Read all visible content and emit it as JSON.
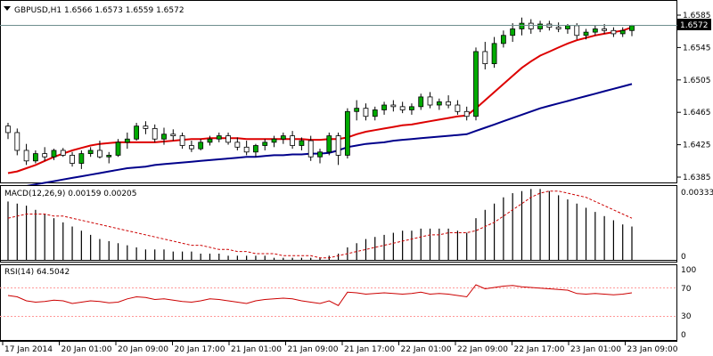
{
  "window": {
    "symbol_line": "GBPUSD,H1  1.6566 1.6573 1.6559 1.6572",
    "collapse_glyph": "triangle-down-icon"
  },
  "price_panel": {
    "current_price_label": "1.6572",
    "y_ticks": [
      "1.6585",
      "1.6545",
      "1.6505",
      "1.6465",
      "1.6425",
      "1.6385"
    ]
  },
  "macd_panel": {
    "title": "MACD(12,26,9) 0.00159 0.00205",
    "y_ticks": [
      "0.00333",
      "0"
    ]
  },
  "rsi_panel": {
    "title": "RSI(14) 64.5042",
    "y_ticks": [
      "100",
      "70",
      "30",
      "0"
    ],
    "levels": [
      70,
      30
    ]
  },
  "time_axis": {
    "labels": [
      "17 Jan 2014",
      "20 Jan 01:00",
      "20 Jan 09:00",
      "20 Jan 17:00",
      "21 Jan 01:00",
      "21 Jan 09:00",
      "21 Jan 17:00",
      "22 Jan 01:00",
      "22 Jan 09:00",
      "22 Jan 17:00",
      "23 Jan 01:00",
      "23 Jan 09:00"
    ]
  },
  "colors": {
    "background": "#ffffff",
    "bull_candle": "#00aa00",
    "bear_candle": "#222222",
    "fast_ma": "#dd0000",
    "slow_ma": "#00008b",
    "macd_hist": "#000000",
    "macd_signal": "#cc0000",
    "rsi_line": "#cc0000",
    "level_line": "#ff9999",
    "border": "#000000"
  },
  "chart_data": [
    {
      "type": "candlestick",
      "name": "price",
      "ylim": [
        1.638,
        1.659
      ],
      "candles": [
        [
          1.6448,
          1.6452,
          1.6432,
          1.644
        ],
        [
          1.644,
          1.6445,
          1.6412,
          1.6418
        ],
        [
          1.6418,
          1.6426,
          1.64,
          1.6405
        ],
        [
          1.6405,
          1.6418,
          1.6402,
          1.6414
        ],
        [
          1.6414,
          1.6422,
          1.6405,
          1.641
        ],
        [
          1.641,
          1.642,
          1.6406,
          1.6418
        ],
        [
          1.6418,
          1.6421,
          1.641,
          1.6412
        ],
        [
          1.6412,
          1.6416,
          1.6398,
          1.6402
        ],
        [
          1.6402,
          1.6418,
          1.6395,
          1.6414
        ],
        [
          1.6414,
          1.6422,
          1.641,
          1.6418
        ],
        [
          1.6418,
          1.643,
          1.6408,
          1.641
        ],
        [
          1.641,
          1.6416,
          1.6402,
          1.6412
        ],
        [
          1.6412,
          1.6432,
          1.641,
          1.6428
        ],
        [
          1.6428,
          1.644,
          1.642,
          1.6432
        ],
        [
          1.6432,
          1.6452,
          1.643,
          1.6448
        ],
        [
          1.6448,
          1.6454,
          1.6438,
          1.6445
        ],
        [
          1.6445,
          1.645,
          1.6428,
          1.6432
        ],
        [
          1.6432,
          1.6446,
          1.6425,
          1.6438
        ],
        [
          1.6438,
          1.6444,
          1.643,
          1.6436
        ],
        [
          1.6436,
          1.644,
          1.642,
          1.6424
        ],
        [
          1.6424,
          1.643,
          1.6416,
          1.642
        ],
        [
          1.642,
          1.6432,
          1.6418,
          1.6428
        ],
        [
          1.6428,
          1.6436,
          1.6424,
          1.6432
        ],
        [
          1.6432,
          1.644,
          1.6428,
          1.6436
        ],
        [
          1.6436,
          1.644,
          1.6425,
          1.6428
        ],
        [
          1.6428,
          1.6434,
          1.6418,
          1.6422
        ],
        [
          1.6422,
          1.643,
          1.6412,
          1.6416
        ],
        [
          1.6416,
          1.6426,
          1.641,
          1.6424
        ],
        [
          1.6424,
          1.6432,
          1.6418,
          1.6428
        ],
        [
          1.6428,
          1.6436,
          1.6422,
          1.6432
        ],
        [
          1.6432,
          1.644,
          1.6426,
          1.6436
        ],
        [
          1.6436,
          1.6442,
          1.642,
          1.6424
        ],
        [
          1.6424,
          1.6434,
          1.6418,
          1.643
        ],
        [
          1.643,
          1.6436,
          1.6405,
          1.641
        ],
        [
          1.641,
          1.642,
          1.6402,
          1.6416
        ],
        [
          1.6416,
          1.644,
          1.6412,
          1.6436
        ],
        [
          1.6436,
          1.644,
          1.64,
          1.6412
        ],
        [
          1.6412,
          1.647,
          1.6408,
          1.6466
        ],
        [
          1.6466,
          1.648,
          1.6455,
          1.647
        ],
        [
          1.647,
          1.6476,
          1.6455,
          1.646
        ],
        [
          1.646,
          1.6472,
          1.6455,
          1.6468
        ],
        [
          1.6468,
          1.6478,
          1.6462,
          1.6474
        ],
        [
          1.6474,
          1.648,
          1.6466,
          1.6472
        ],
        [
          1.6472,
          1.6478,
          1.6464,
          1.6468
        ],
        [
          1.6468,
          1.6476,
          1.6462,
          1.6472
        ],
        [
          1.6472,
          1.6488,
          1.6468,
          1.6484
        ],
        [
          1.6484,
          1.649,
          1.647,
          1.6474
        ],
        [
          1.6474,
          1.6482,
          1.6468,
          1.6478
        ],
        [
          1.6478,
          1.6486,
          1.647,
          1.6474
        ],
        [
          1.6474,
          1.648,
          1.6462,
          1.6466
        ],
        [
          1.6466,
          1.6472,
          1.6455,
          1.646
        ],
        [
          1.646,
          1.6545,
          1.6455,
          1.654
        ],
        [
          1.654,
          1.6552,
          1.6518,
          1.6525
        ],
        [
          1.6525,
          1.6558,
          1.652,
          1.655
        ],
        [
          1.655,
          1.6566,
          1.6545,
          1.656
        ],
        [
          1.656,
          1.6575,
          1.6552,
          1.6568
        ],
        [
          1.6568,
          1.6582,
          1.656,
          1.6575
        ],
        [
          1.6575,
          1.658,
          1.6562,
          1.6568
        ],
        [
          1.6568,
          1.6578,
          1.6564,
          1.6574
        ],
        [
          1.6574,
          1.6578,
          1.6566,
          1.657
        ],
        [
          1.657,
          1.6576,
          1.6564,
          1.6568
        ],
        [
          1.6568,
          1.6574,
          1.6562,
          1.6572
        ],
        [
          1.6572,
          1.6575,
          1.6555,
          1.656
        ],
        [
          1.656,
          1.6568,
          1.6555,
          1.6564
        ],
        [
          1.6564,
          1.6572,
          1.656,
          1.6568
        ],
        [
          1.6568,
          1.6574,
          1.6562,
          1.6566
        ],
        [
          1.6566,
          1.657,
          1.6558,
          1.6562
        ],
        [
          1.6562,
          1.657,
          1.6558,
          1.6566
        ],
        [
          1.6566,
          1.6573,
          1.6559,
          1.6572
        ]
      ]
    },
    {
      "type": "line",
      "name": "fast-ma",
      "values": [
        1.639,
        1.6392,
        1.6396,
        1.64,
        1.6405,
        1.641,
        1.6414,
        1.6418,
        1.6421,
        1.6424,
        1.6426,
        1.6427,
        1.6428,
        1.6428,
        1.6428,
        1.6428,
        1.6428,
        1.6429,
        1.643,
        1.6431,
        1.6432,
        1.6432,
        1.6433,
        1.6433,
        1.6433,
        1.6433,
        1.6432,
        1.6432,
        1.6432,
        1.6432,
        1.6432,
        1.6432,
        1.6432,
        1.6431,
        1.6431,
        1.6432,
        1.6432,
        1.6434,
        1.6438,
        1.6441,
        1.6443,
        1.6445,
        1.6447,
        1.6449,
        1.645,
        1.6452,
        1.6454,
        1.6456,
        1.6458,
        1.646,
        1.6461,
        1.647,
        1.648,
        1.649,
        1.65,
        1.651,
        1.652,
        1.6528,
        1.6535,
        1.654,
        1.6545,
        1.655,
        1.6554,
        1.6557,
        1.656,
        1.6562,
        1.6564,
        1.6566,
        1.657
      ]
    },
    {
      "type": "line",
      "name": "slow-ma",
      "values": [
        1.637,
        1.6372,
        1.6374,
        1.6376,
        1.6378,
        1.638,
        1.6382,
        1.6384,
        1.6386,
        1.6388,
        1.639,
        1.6392,
        1.6394,
        1.6396,
        1.6397,
        1.6398,
        1.64,
        1.6401,
        1.6402,
        1.6403,
        1.6404,
        1.6405,
        1.6406,
        1.6407,
        1.6408,
        1.6409,
        1.641,
        1.641,
        1.6411,
        1.6412,
        1.6412,
        1.6413,
        1.6413,
        1.6414,
        1.6414,
        1.6415,
        1.6418,
        1.6422,
        1.6424,
        1.6426,
        1.6427,
        1.6428,
        1.643,
        1.6431,
        1.6432,
        1.6433,
        1.6434,
        1.6435,
        1.6436,
        1.6437,
        1.6438,
        1.6442,
        1.6446,
        1.645,
        1.6454,
        1.6458,
        1.6462,
        1.6466,
        1.647,
        1.6473,
        1.6476,
        1.6479,
        1.6482,
        1.6485,
        1.6488,
        1.6491,
        1.6494,
        1.6497,
        1.65
      ]
    },
    {
      "type": "bar",
      "name": "macd-histogram",
      "ylim": [
        -0.0002,
        0.0035
      ],
      "values": [
        0.0028,
        0.0027,
        0.0026,
        0.0024,
        0.0022,
        0.002,
        0.0018,
        0.0016,
        0.0014,
        0.0012,
        0.001,
        0.0009,
        0.0008,
        0.0007,
        0.0006,
        0.0005,
        0.0005,
        0.0005,
        0.0004,
        0.0004,
        0.0004,
        0.0003,
        0.0003,
        0.0003,
        0.0002,
        0.0002,
        0.0002,
        0.0002,
        0.0002,
        0.0001,
        0.0001,
        0.0001,
        0.0001,
        0.0001,
        0.0001,
        0.0002,
        0.0003,
        0.0006,
        0.0008,
        0.001,
        0.0011,
        0.0012,
        0.0013,
        0.0014,
        0.0014,
        0.0015,
        0.0015,
        0.0015,
        0.0015,
        0.0014,
        0.0013,
        0.002,
        0.0024,
        0.0027,
        0.003,
        0.0032,
        0.0033,
        0.0034,
        0.0034,
        0.0033,
        0.0031,
        0.0029,
        0.0027,
        0.0025,
        0.0023,
        0.0021,
        0.0019,
        0.0017,
        0.0016
      ]
    },
    {
      "type": "line",
      "name": "macd-signal",
      "values": [
        0.002,
        0.0021,
        0.0022,
        0.0022,
        0.0022,
        0.0021,
        0.0021,
        0.002,
        0.0019,
        0.0018,
        0.0017,
        0.0016,
        0.0015,
        0.0014,
        0.0013,
        0.0012,
        0.0011,
        0.001,
        0.0009,
        0.0008,
        0.0007,
        0.0007,
        0.0006,
        0.0005,
        0.0005,
        0.0004,
        0.0004,
        0.0003,
        0.0003,
        0.0003,
        0.0002,
        0.0002,
        0.0002,
        0.0002,
        0.0001,
        0.0001,
        0.0002,
        0.0003,
        0.0004,
        0.0005,
        0.0006,
        0.0007,
        0.0008,
        0.0009,
        0.001,
        0.0011,
        0.0012,
        0.0012,
        0.0013,
        0.0013,
        0.0013,
        0.0014,
        0.0016,
        0.0018,
        0.0021,
        0.0024,
        0.0027,
        0.003,
        0.0032,
        0.0033,
        0.0033,
        0.0032,
        0.0031,
        0.003,
        0.0028,
        0.0026,
        0.0024,
        0.0022,
        0.002
      ]
    },
    {
      "type": "line",
      "name": "rsi",
      "ylim": [
        0,
        100
      ],
      "values": [
        60,
        58,
        52,
        50,
        51,
        53,
        52,
        48,
        50,
        52,
        51,
        49,
        50,
        55,
        58,
        57,
        54,
        55,
        53,
        51,
        50,
        52,
        55,
        54,
        52,
        50,
        48,
        52,
        54,
        55,
        56,
        55,
        52,
        50,
        48,
        52,
        45,
        65,
        64,
        62,
        63,
        64,
        63,
        62,
        63,
        65,
        62,
        63,
        62,
        60,
        58,
        76,
        70,
        72,
        74,
        75,
        73,
        72,
        71,
        70,
        69,
        68,
        63,
        62,
        63,
        62,
        61,
        62,
        64
      ]
    }
  ]
}
